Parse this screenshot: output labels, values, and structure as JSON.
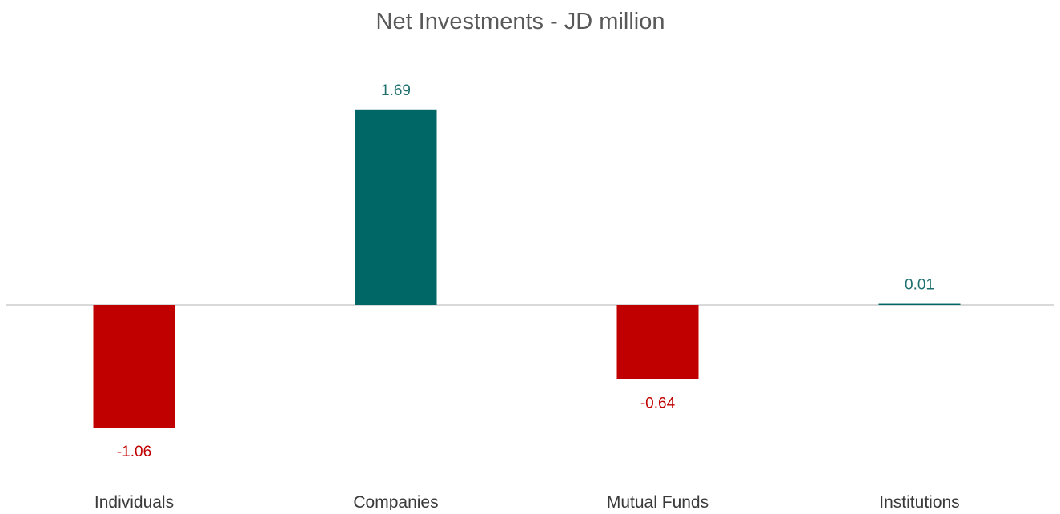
{
  "chart_data": {
    "type": "bar",
    "title": "Net Investments - JD million",
    "xlabel": "",
    "ylabel": "",
    "categories": [
      "Individuals",
      "Companies",
      "Mutual Funds",
      "Institutions"
    ],
    "values": [
      -1.06,
      1.69,
      -0.64,
      0.01
    ],
    "data_labels": [
      "-1.06",
      "1.69",
      "-0.64",
      "0.01"
    ],
    "ylim": [
      -1.3,
      1.8
    ],
    "grid": false,
    "legend": "none",
    "colors": {
      "positive": "#006666",
      "negative": "#c00000",
      "positive_label": "#1f6f6f",
      "negative_label": "#c00000",
      "baseline": "#d9d9d9"
    }
  }
}
